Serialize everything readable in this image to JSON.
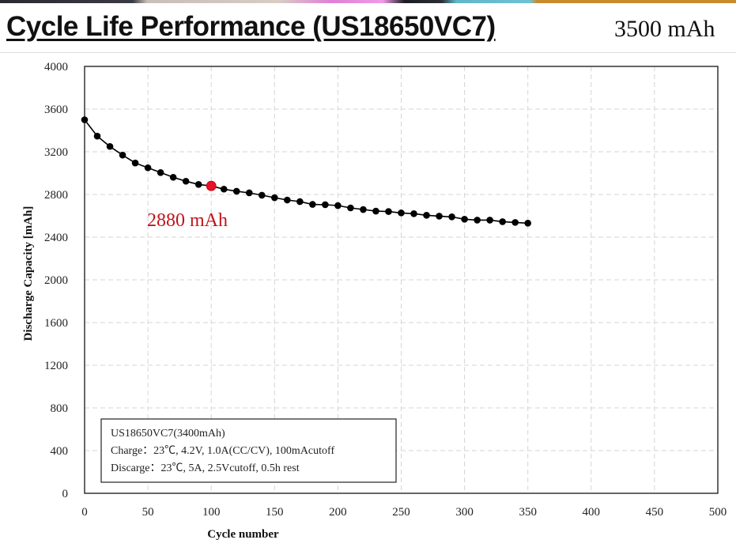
{
  "header": {
    "title": "Cycle Life Performance (US18650VC7)",
    "subtitle": "3500 mAh"
  },
  "chart_data": {
    "type": "line",
    "title": "Cycle Life Performance (US18650VC7)",
    "xlabel": "Cycle number",
    "ylabel": "Discharge Capacity  [mAh]",
    "xlim": [
      0,
      500
    ],
    "ylim": [
      0,
      4000
    ],
    "x_ticks": [
      "0",
      "50",
      "100",
      "150",
      "200",
      "250",
      "300",
      "350",
      "400",
      "450",
      "500"
    ],
    "y_ticks": [
      "0",
      "400",
      "800",
      "1200",
      "1600",
      "2000",
      "2400",
      "2800",
      "3200",
      "3600",
      "4000"
    ],
    "x_tick_values": [
      0,
      50,
      100,
      150,
      200,
      250,
      300,
      350,
      400,
      450,
      500
    ],
    "y_tick_values": [
      0,
      400,
      800,
      1200,
      1600,
      2000,
      2400,
      2800,
      3200,
      3600,
      4000
    ],
    "grid": true,
    "series": [
      {
        "name": "US18650VC7",
        "color": "#000000",
        "x": [
          0,
          10,
          20,
          30,
          40,
          50,
          60,
          70,
          80,
          90,
          100,
          110,
          120,
          130,
          140,
          150,
          160,
          170,
          180,
          190,
          200,
          210,
          220,
          230,
          240,
          250,
          260,
          270,
          280,
          290,
          300,
          310,
          320,
          330,
          340,
          350
        ],
        "values": [
          3500,
          3347,
          3250,
          3169,
          3095,
          3050,
          3005,
          2961,
          2924,
          2894,
          2880,
          2850,
          2830,
          2815,
          2793,
          2770,
          2748,
          2733,
          2707,
          2704,
          2696,
          2674,
          2659,
          2644,
          2640,
          2627,
          2620,
          2605,
          2597,
          2590,
          2568,
          2560,
          2560,
          2545,
          2538,
          2531
        ]
      }
    ],
    "highlight": {
      "x": 100,
      "y": 2880,
      "color": "#e8102a",
      "label": "2880 mAh",
      "label_color": "#c0141c"
    },
    "legend": {
      "placement": "bottom-left",
      "lines": [
        "US18650VC7(3400mAh)",
        "Charge：23℃, 4.2V, 1.0A(CC/CV), 100mAcutoff",
        "Discarge：23℃, 5A, 2.5Vcutoff, 0.5h rest"
      ]
    }
  }
}
